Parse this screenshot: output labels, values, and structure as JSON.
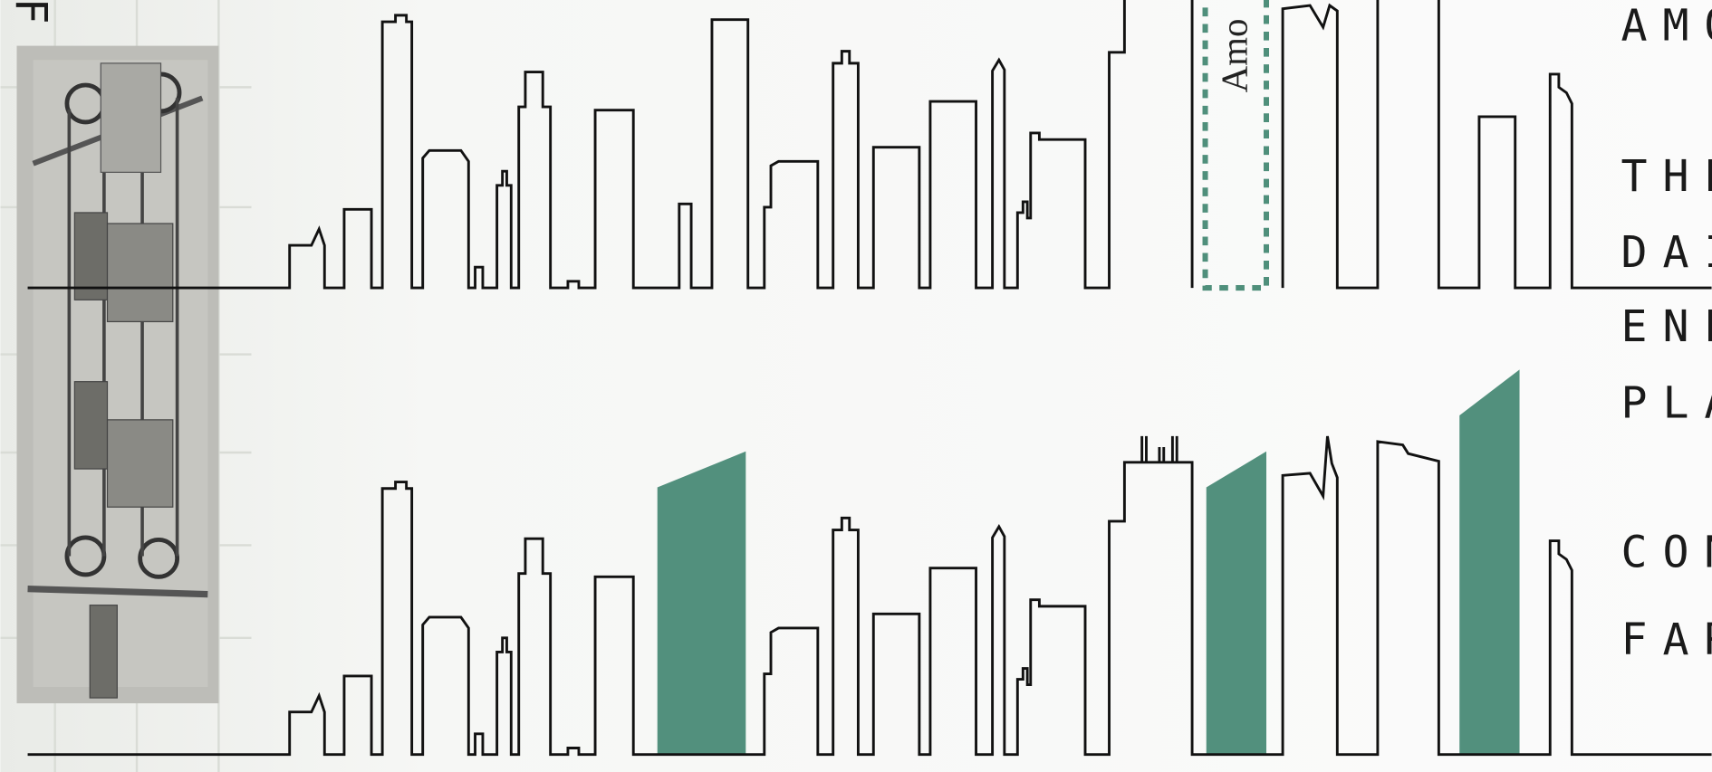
{
  "left_label": "F",
  "rotated_label": "Amo",
  "text_lines": [
    "AMO",
    "THE",
    "DAI",
    "ENE",
    "PLA",
    "CON",
    "FAR"
  ]
}
